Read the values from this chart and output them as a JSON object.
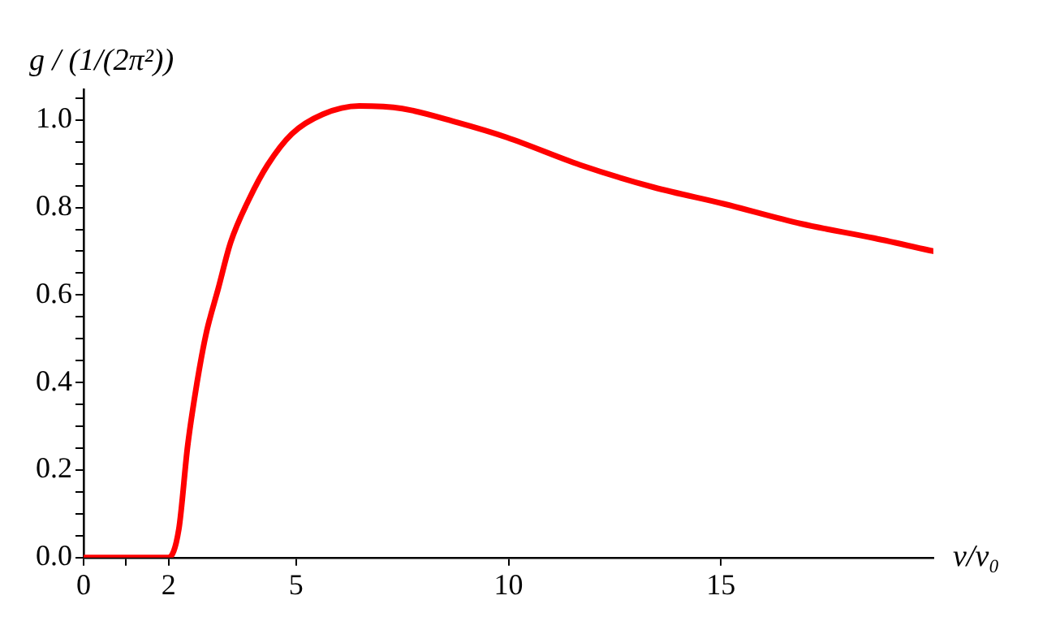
{
  "chart_data": {
    "type": "line",
    "xlabel": "v/v₀",
    "ylabel": "g / (1/(2π²))",
    "x": [
      0,
      2,
      2.24,
      2.45,
      2.67,
      2.88,
      3.17,
      3.46,
      3.9,
      4.33,
      4.9,
      5.63,
      6.49,
      7.5,
      8.8,
      9.96,
      11.69,
      13.42,
      15.08,
      16.88,
      18.6,
      20
    ],
    "series": [
      {
        "color": "#ff0000",
        "values": [
          0,
          0,
          0.064,
          0.256,
          0.4,
          0.51,
          0.615,
          0.72,
          0.82,
          0.897,
          0.968,
          1.013,
          1.032,
          1.026,
          0.994,
          0.96,
          0.897,
          0.846,
          0.808,
          0.763,
          0.73,
          0.7
        ]
      }
    ],
    "xlim": [
      0,
      20
    ],
    "xticks": [
      0,
      {
        "value": 1,
        "label": null
      },
      2,
      5,
      10,
      15
    ],
    "ylim": [
      0,
      1.07
    ],
    "yticks": [
      "0.0",
      {
        "value": 0.05,
        "label": null
      },
      {
        "value": 0.1,
        "label": null
      },
      {
        "value": 0.15,
        "label": null
      },
      {
        "value": 0.2,
        "label": "0.2"
      },
      {
        "value": 0.25,
        "label": null
      },
      {
        "value": 0.3,
        "label": null
      },
      {
        "value": 0.35,
        "label": null
      },
      {
        "value": 0.4,
        "label": "0.4"
      },
      {
        "value": 0.45,
        "label": null
      },
      {
        "value": 0.5,
        "label": null
      },
      {
        "value": 0.55,
        "label": null
      },
      {
        "value": 0.6,
        "label": "0.6"
      },
      {
        "value": 0.65,
        "label": null
      },
      {
        "value": 0.7,
        "label": null
      },
      {
        "value": 0.75,
        "label": null
      },
      {
        "value": 0.8,
        "label": "0.8"
      },
      {
        "value": 0.85,
        "label": null
      },
      {
        "value": 0.9,
        "label": null
      },
      {
        "value": 0.95,
        "label": null
      },
      {
        "value": 1,
        "label": "1.0"
      },
      {
        "value": 1.05,
        "label": null
      }
    ],
    "grid": false,
    "legend": false,
    "marker": "none",
    "line_style": "solid"
  }
}
